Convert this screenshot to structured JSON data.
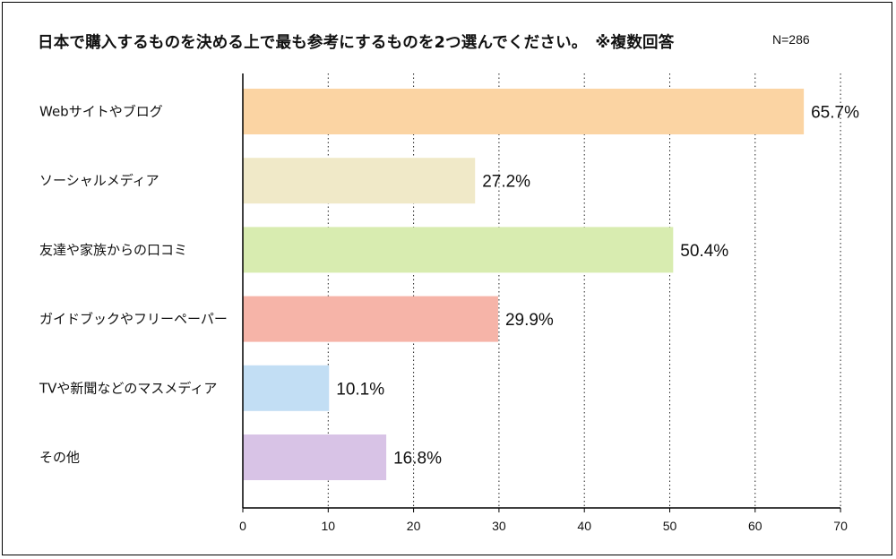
{
  "chart_data": {
    "type": "bar",
    "orientation": "horizontal",
    "title": "日本で購入するものを決める上で最も参考にするものを2つ選んでください。　※複数回答",
    "note": "N=286",
    "categories": [
      "Webサイトやブログ",
      "ソーシャルメディア",
      "友達や家族からの口コミ",
      "ガイドブックやフリーペーパー",
      "TVや新聞などのマスメディア",
      "その他"
    ],
    "values": [
      65.7,
      27.2,
      50.4,
      29.9,
      10.1,
      16.8
    ],
    "value_labels": [
      "65.7%",
      "27.2%",
      "50.4%",
      "29.9%",
      "10.1%",
      "16.8%"
    ],
    "colors": [
      "#fbd4a3",
      "#f0e9c8",
      "#d8ecb0",
      "#f6b4a8",
      "#c2def4",
      "#d8c3e6"
    ],
    "xlim": [
      0,
      70
    ],
    "xticks": [
      "0",
      "10",
      "20",
      "30",
      "40",
      "50",
      "60",
      "70"
    ],
    "grid": "vertical dotted",
    "legend": "none"
  }
}
